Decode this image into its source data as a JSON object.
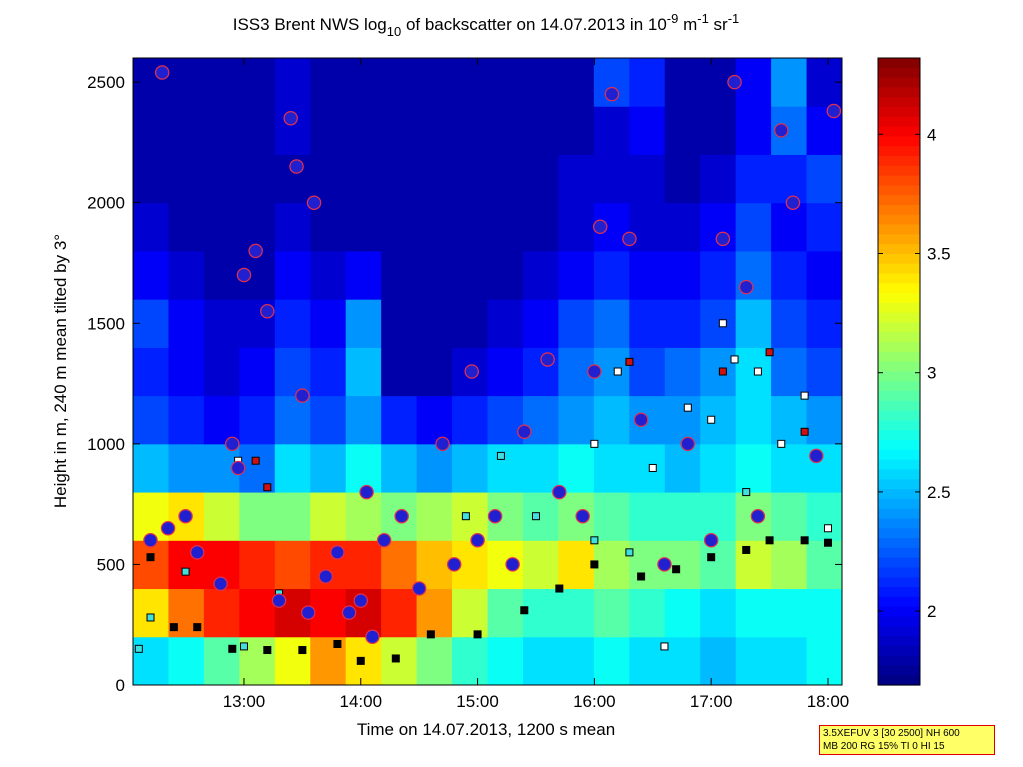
{
  "chart_data": {
    "type": "heatmap",
    "title_parts": [
      "ISS3 Brent NWS log",
      "10",
      " of backscatter on 14.07.2013 in 10",
      "-9",
      " m",
      "-1",
      " sr",
      "-1"
    ],
    "xlabel": "Time on 14.07.2013, 1200 s mean",
    "ylabel": "Height in m, 240 m mean tilted by 3°",
    "xlim": [
      12.05,
      18.12
    ],
    "xticks": [
      {
        "value": 13,
        "label": "13:00"
      },
      {
        "value": 14,
        "label": "14:00"
      },
      {
        "value": 15,
        "label": "15:00"
      },
      {
        "value": 16,
        "label": "16:00"
      },
      {
        "value": 17,
        "label": "17:00"
      },
      {
        "value": 18,
        "label": "18:00"
      }
    ],
    "ylim": [
      0,
      2600
    ],
    "yticks": [
      0,
      500,
      1000,
      1500,
      2000,
      2500
    ],
    "colormap": "jet",
    "clim": [
      1.69,
      4.32
    ],
    "cticks": [
      2,
      2.5,
      3,
      3.5,
      4
    ],
    "z": [
      [
        2.6,
        2.7,
        2.9,
        3.1,
        3.3,
        3.6,
        3.4,
        3.2,
        3.0,
        2.8,
        2.7,
        2.6,
        2.6,
        2.7,
        2.6,
        2.6,
        2.5,
        2.6,
        2.6,
        2.7
      ],
      [
        3.4,
        3.7,
        3.9,
        4.0,
        4.1,
        4.0,
        4.1,
        3.9,
        3.6,
        3.2,
        2.9,
        2.8,
        2.8,
        2.9,
        2.8,
        2.7,
        2.6,
        2.7,
        2.7,
        2.7
      ],
      [
        3.8,
        4.0,
        4.0,
        3.9,
        3.8,
        3.9,
        3.9,
        3.7,
        3.5,
        3.4,
        3.3,
        3.2,
        3.4,
        3.1,
        3.0,
        3.0,
        2.9,
        3.2,
        3.1,
        2.9
      ],
      [
        3.3,
        3.4,
        3.2,
        3.0,
        3.0,
        3.2,
        3.1,
        3.0,
        3.1,
        3.2,
        3.0,
        2.9,
        3.0,
        2.9,
        2.8,
        2.8,
        2.8,
        3.0,
        2.9,
        2.8
      ],
      [
        2.5,
        2.4,
        2.4,
        2.3,
        2.6,
        2.5,
        2.7,
        2.5,
        2.4,
        2.5,
        2.6,
        2.6,
        2.7,
        2.6,
        2.6,
        2.5,
        2.6,
        2.7,
        2.6,
        2.6
      ],
      [
        2.2,
        2.1,
        2.0,
        2.1,
        2.3,
        2.2,
        2.4,
        2.1,
        2.0,
        2.1,
        2.2,
        2.3,
        2.4,
        2.5,
        2.4,
        2.4,
        2.5,
        2.6,
        2.5,
        2.4
      ],
      [
        2.1,
        2.0,
        1.9,
        2.0,
        2.2,
        2.1,
        2.5,
        1.8,
        1.8,
        1.9,
        2.0,
        2.1,
        2.3,
        2.4,
        2.2,
        2.3,
        2.4,
        2.6,
        2.3,
        2.2
      ],
      [
        2.2,
        2.0,
        1.9,
        1.9,
        2.1,
        2.0,
        2.4,
        1.8,
        1.8,
        1.8,
        1.9,
        2.0,
        2.2,
        2.3,
        2.1,
        2.1,
        2.2,
        2.5,
        2.2,
        2.1
      ],
      [
        2.0,
        1.9,
        1.8,
        1.8,
        2.0,
        1.9,
        2.0,
        1.8,
        1.8,
        1.8,
        1.8,
        1.9,
        2.0,
        2.1,
        2.0,
        2.0,
        2.1,
        2.3,
        2.1,
        2.0
      ],
      [
        1.9,
        1.8,
        1.8,
        1.8,
        1.9,
        1.8,
        1.8,
        1.8,
        1.8,
        1.8,
        1.8,
        1.8,
        1.9,
        2.0,
        1.9,
        1.9,
        2.0,
        2.2,
        2.0,
        2.1
      ],
      [
        1.8,
        1.8,
        1.8,
        1.8,
        1.8,
        1.8,
        1.8,
        1.8,
        1.8,
        1.8,
        1.8,
        1.8,
        1.9,
        1.9,
        1.9,
        1.8,
        1.9,
        2.1,
        2.1,
        2.2
      ],
      [
        1.8,
        1.8,
        1.8,
        1.8,
        1.9,
        1.8,
        1.8,
        1.8,
        1.8,
        1.8,
        1.8,
        1.8,
        1.8,
        1.9,
        2.0,
        1.8,
        1.8,
        2.0,
        2.3,
        2.0
      ],
      [
        1.8,
        1.8,
        1.8,
        1.8,
        1.9,
        1.8,
        1.8,
        1.8,
        1.8,
        1.8,
        1.8,
        1.8,
        1.8,
        2.2,
        2.1,
        1.8,
        1.8,
        2.0,
        2.4,
        1.9
      ]
    ],
    "markers": [
      {
        "marker": "square",
        "color": "#000000",
        "x": [
          12.2,
          12.4,
          12.6,
          12.9,
          13.2,
          13.5,
          13.8,
          14.0,
          14.3,
          14.6,
          15.0,
          15.4,
          15.7,
          16.0,
          16.4,
          16.7,
          17.0,
          17.3,
          17.5,
          17.8,
          18.0
        ],
        "y": [
          530,
          240,
          240,
          150,
          145,
          145,
          170,
          100,
          110,
          210,
          210,
          310,
          400,
          500,
          450,
          480,
          530,
          560,
          600,
          600,
          590
        ]
      },
      {
        "marker": "square",
        "color": "#ffffff",
        "x": [
          16.0,
          16.2,
          16.5,
          16.8,
          17.0,
          17.2,
          17.4,
          17.6,
          17.8,
          18.0,
          17.1,
          12.95,
          16.6
        ],
        "y": [
          1000,
          1300,
          900,
          1150,
          1100,
          1350,
          1300,
          1000,
          1200,
          650,
          1500,
          930,
          160
        ]
      },
      {
        "marker": "square",
        "color": "#40e0e0",
        "x": [
          12.1,
          12.2,
          13.0,
          13.3,
          15.2,
          15.5,
          16.0,
          16.3,
          14.9,
          17.3,
          12.5
        ],
        "y": [
          150,
          280,
          160,
          380,
          950,
          700,
          600,
          550,
          700,
          800,
          470
        ]
      },
      {
        "marker": "square",
        "color": "#d01010",
        "x": [
          13.1,
          13.2,
          16.3,
          17.1,
          17.5,
          17.8
        ],
        "y": [
          930,
          820,
          1340,
          1300,
          1380,
          1050
        ]
      },
      {
        "marker": "circle",
        "color": "#2020d0",
        "x": [
          12.2,
          12.35,
          12.5,
          12.6,
          12.8,
          12.9,
          12.95,
          13.0,
          13.1,
          13.2,
          13.3,
          13.4,
          13.45,
          13.5,
          13.55,
          13.6,
          13.7,
          13.8,
          13.9,
          14.0,
          14.05,
          14.1,
          14.2,
          14.35,
          14.5,
          14.7,
          14.8,
          14.95,
          15.0,
          15.15,
          15.3,
          15.4,
          15.6,
          15.7,
          15.9,
          16.0,
          16.05,
          16.15,
          16.3,
          16.4,
          16.6,
          16.8,
          17.0,
          17.1,
          17.2,
          17.3,
          17.4,
          17.6,
          17.7,
          17.9,
          18.05,
          12.3
        ],
        "y": [
          600,
          650,
          700,
          550,
          420,
          1000,
          900,
          1700,
          1800,
          1550,
          350,
          2350,
          2150,
          1200,
          300,
          2000,
          450,
          550,
          300,
          350,
          800,
          200,
          600,
          700,
          400,
          1000,
          500,
          1300,
          600,
          700,
          500,
          1050,
          1350,
          800,
          700,
          1300,
          1900,
          2450,
          1850,
          1100,
          500,
          1000,
          600,
          1850,
          2500,
          1650,
          700,
          2300,
          2000,
          950,
          2380,
          2540
        ]
      }
    ],
    "annotation": [
      "3.5XEFUV 3 [30 2500] NH 600",
      "MB 200 RG 15% TI 0 HI 15"
    ]
  }
}
